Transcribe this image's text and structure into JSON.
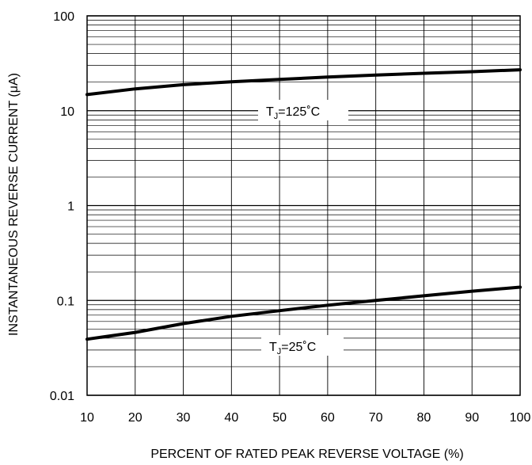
{
  "chart_data": {
    "type": "line",
    "title": "",
    "xlabel": "PERCENT OF RATED PEAK REVERSE VOLTAGE (%)",
    "ylabel": "INSTANTANEOUS REVERSE CURRENT (μA)",
    "xlim": [
      10,
      100
    ],
    "ylim": [
      0.01,
      100
    ],
    "yscale": "log",
    "grid": true,
    "x_ticks": [
      "10",
      "20",
      "30",
      "40",
      "50",
      "60",
      "70",
      "80",
      "90",
      "100"
    ],
    "y_ticks": [
      "0.01",
      "0.1",
      "1",
      "10",
      "100"
    ],
    "series": [
      {
        "name": "TJ=125°C",
        "label_main": "T",
        "label_sub": "J",
        "label_rest": "=125˚C",
        "x": [
          10,
          20,
          30,
          40,
          50,
          60,
          70,
          80,
          90,
          100
        ],
        "y": [
          14.8,
          17.0,
          18.8,
          20.2,
          21.4,
          22.6,
          23.8,
          24.8,
          25.8,
          27.0
        ]
      },
      {
        "name": "TJ=25°C",
        "label_main": "T",
        "label_sub": "J",
        "label_rest": "=25˚C",
        "x": [
          10,
          20,
          30,
          40,
          50,
          60,
          70,
          80,
          90,
          100
        ],
        "y": [
          0.039,
          0.046,
          0.057,
          0.068,
          0.078,
          0.089,
          0.1,
          0.112,
          0.125,
          0.138
        ]
      }
    ]
  }
}
